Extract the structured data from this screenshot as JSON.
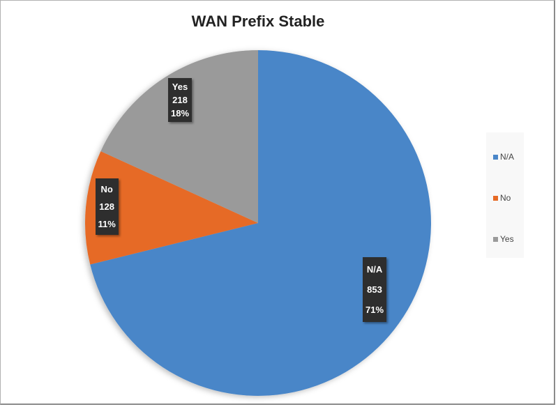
{
  "chart_data": {
    "type": "pie",
    "title": "WAN Prefix Stable",
    "categories": [
      "N/A",
      "No",
      "Yes"
    ],
    "values": [
      853,
      128,
      218
    ],
    "percent_labels": [
      "71%",
      "11%",
      "18%"
    ],
    "colors": [
      "#4a86c8",
      "#e66a25",
      "#9a9a9a"
    ],
    "start_angle": "top, clockwise",
    "legend_placement": "right"
  }
}
